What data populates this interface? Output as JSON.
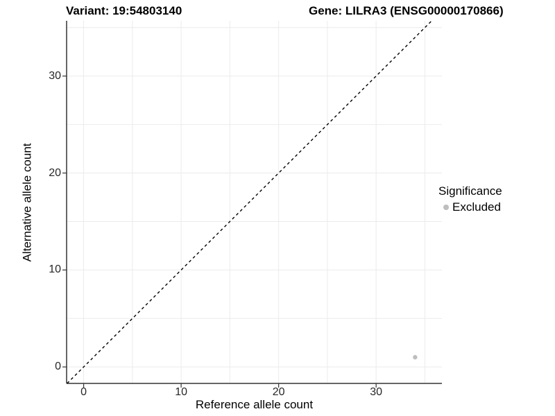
{
  "chart_data": {
    "type": "scatter",
    "titles": {
      "left": "Variant: 19:54803140",
      "right": "Gene: LILRA3 (ENSG00000170866)"
    },
    "xlabel": "Reference allele count",
    "ylabel": "Alternative allele count",
    "xlim": [
      -1.75,
      36.75
    ],
    "ylim": [
      -1.7,
      35.7
    ],
    "x_ticks": [
      0,
      10,
      20,
      30
    ],
    "y_ticks": [
      0,
      10,
      20,
      30
    ],
    "grid": true,
    "grid_interval": 5,
    "grid_color": "#ebebeb",
    "axis_color": "#333333",
    "tick_label_color": "#262626",
    "reference_line": {
      "type": "identity",
      "slope": 1,
      "intercept": 0,
      "linestyle": "dashed",
      "color": "#000000"
    },
    "series": [
      {
        "name": "Excluded",
        "color": "#bebebe",
        "point_radius": 3.2,
        "points": [
          {
            "x": 34,
            "y": 1
          }
        ]
      }
    ],
    "legend": {
      "title": "Significance",
      "position": "right",
      "entries": [
        {
          "label": "Excluded",
          "color": "#bebebe"
        }
      ]
    }
  }
}
